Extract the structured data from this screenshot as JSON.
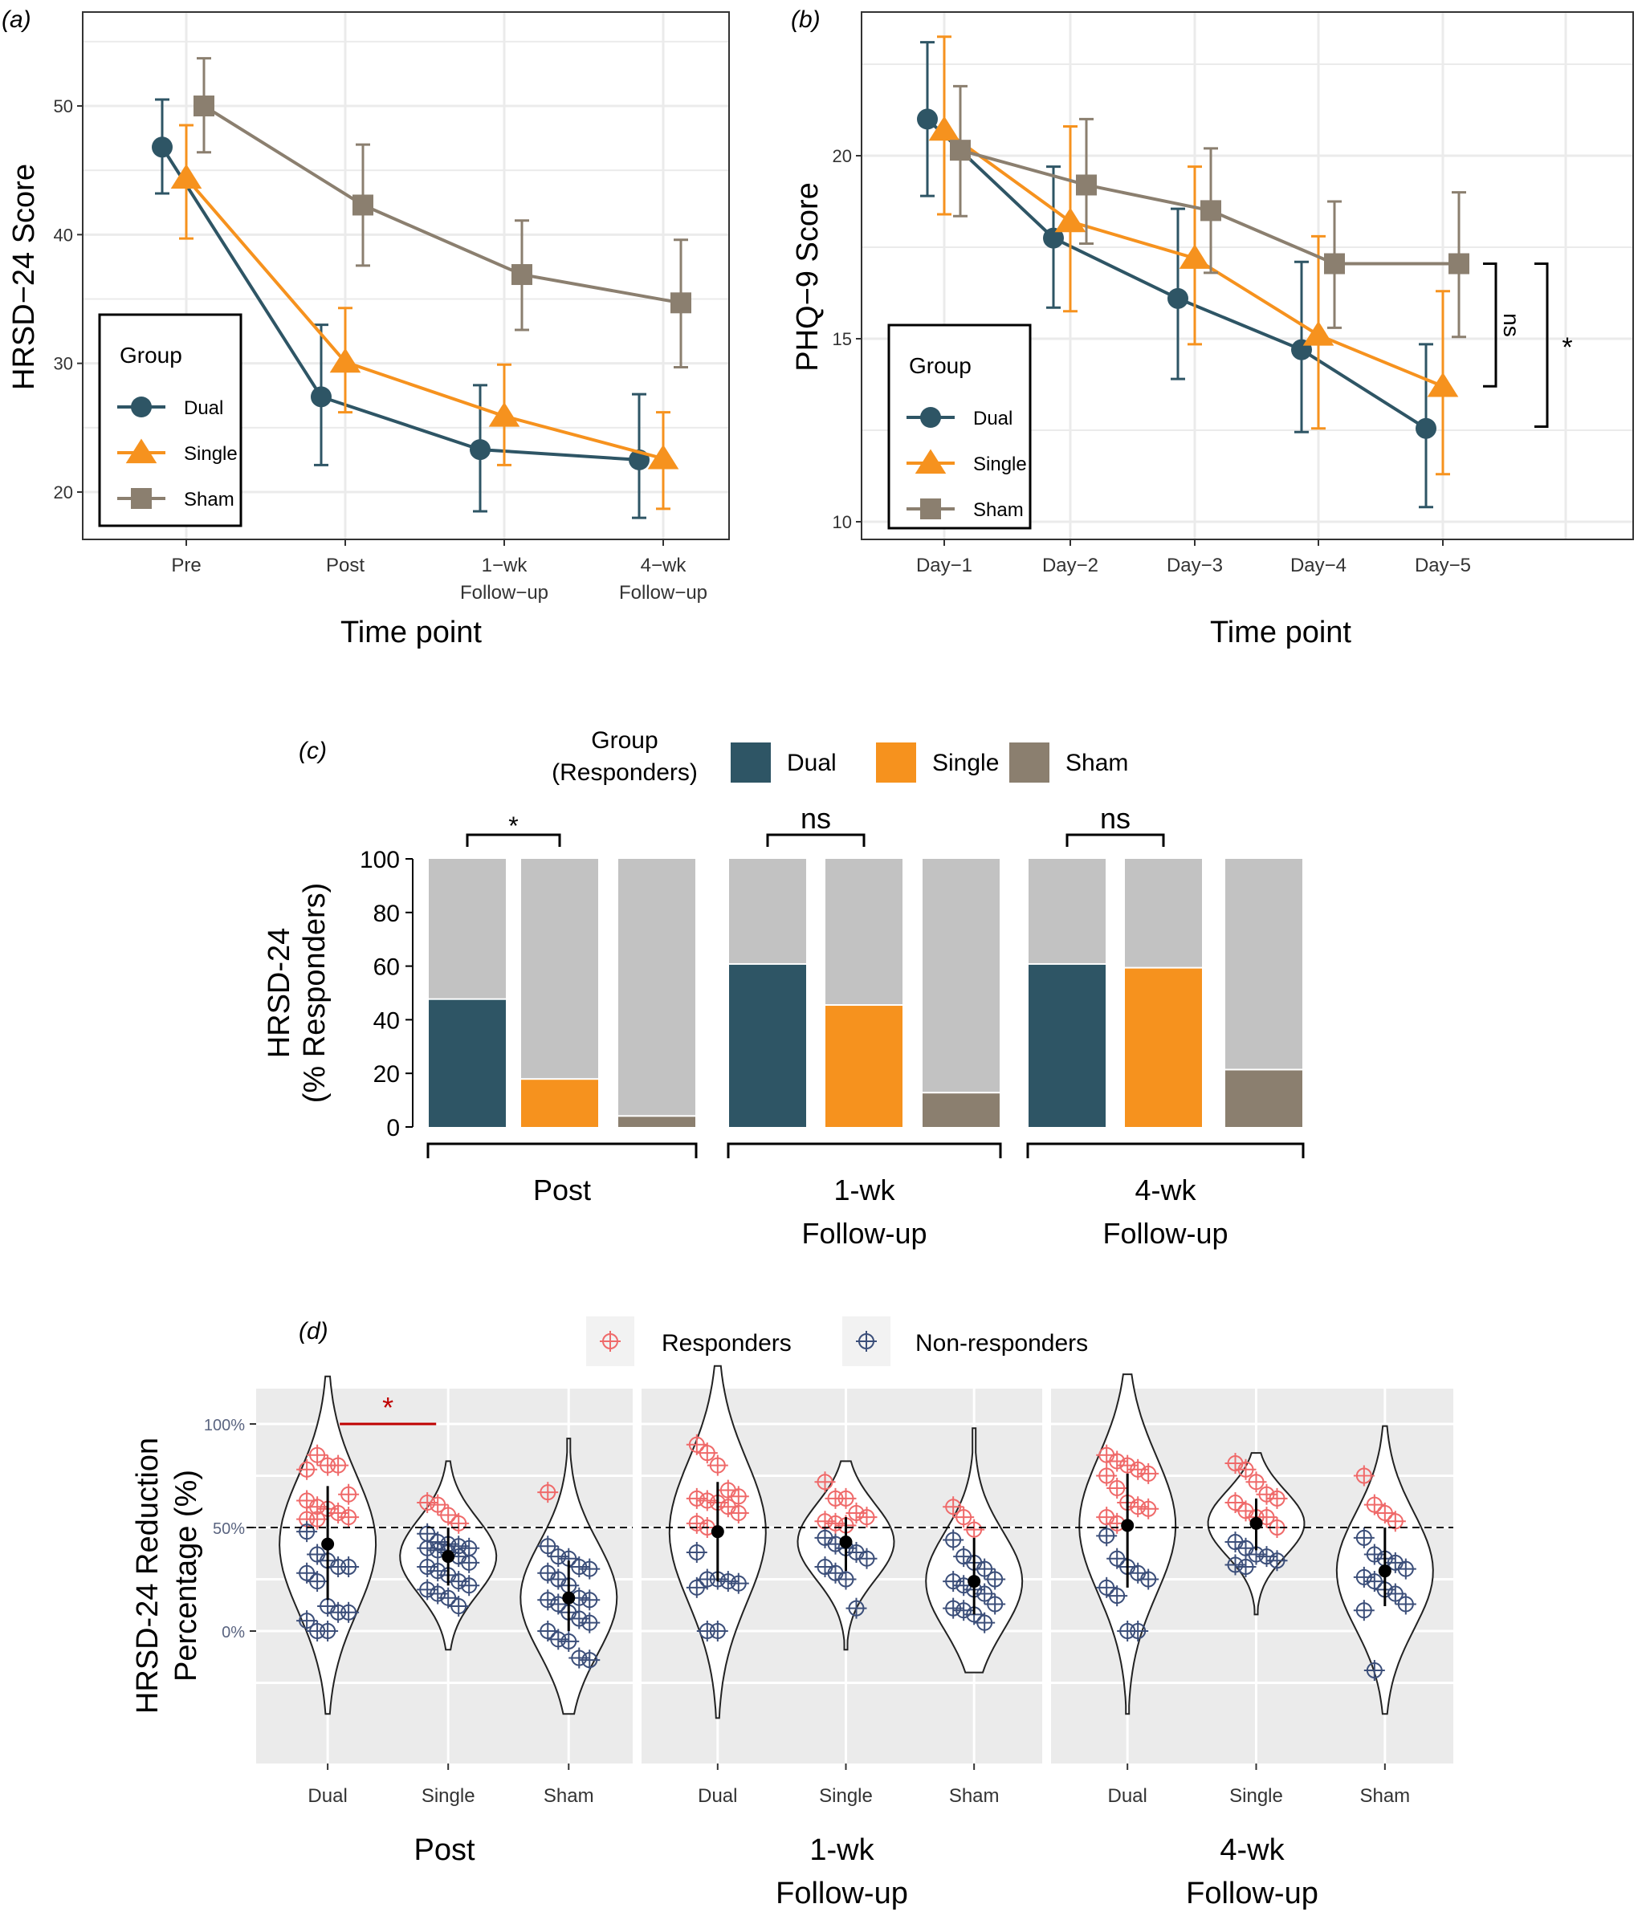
{
  "figure": {
    "panel_labels": [
      "(a)",
      "(b)",
      "(c)",
      "(d)"
    ]
  },
  "colors": {
    "dual": "#2e5565",
    "single": "#f6921e",
    "sham": "#8b7f6f",
    "non_responder_fill": "#c2c2c2",
    "responder_point": "#ef6a6a",
    "non_responder_point": "#3c4f7a",
    "significance_red": "#c00000",
    "d_tick_label": "#5a6480"
  },
  "chart_data": [
    {
      "id": "a",
      "type": "line",
      "title": "",
      "xlabel": "Time point",
      "ylabel": "HRSD−24 Score",
      "categories": [
        "Pre",
        "Post",
        "1−wk\nFollow−up",
        "4−wk\nFollow−up"
      ],
      "yticks": [
        20,
        30,
        40,
        50
      ],
      "ylim": [
        16.5,
        57
      ],
      "grid": true,
      "legend": {
        "title": "Group",
        "position": "bottom-left",
        "entries": [
          "Dual",
          "Single",
          "Sham"
        ]
      },
      "series": [
        {
          "name": "Dual",
          "marker": "circle",
          "values": [
            46.8,
            27.4,
            23.3,
            22.5
          ],
          "lower": [
            43.2,
            22.1,
            18.5,
            18.0
          ],
          "upper": [
            50.5,
            33.0,
            28.3,
            27.6
          ]
        },
        {
          "name": "Single",
          "marker": "triangle",
          "values": [
            44.4,
            30.1,
            25.9,
            22.6
          ],
          "lower": [
            39.7,
            26.2,
            22.1,
            18.7
          ],
          "upper": [
            48.5,
            34.3,
            29.9,
            26.2
          ]
        },
        {
          "name": "Sham",
          "marker": "square",
          "values": [
            50.0,
            42.3,
            36.9,
            34.7
          ],
          "lower": [
            46.4,
            37.6,
            32.6,
            29.7
          ],
          "upper": [
            53.7,
            47.0,
            41.1,
            39.6
          ]
        }
      ]
    },
    {
      "id": "b",
      "type": "line",
      "title": "",
      "xlabel": "Time point",
      "ylabel": "PHQ−9 Score",
      "categories": [
        "Day−1",
        "Day−2",
        "Day−3",
        "Day−4",
        "Day−5"
      ],
      "yticks": [
        10,
        15,
        20
      ],
      "ylim": [
        8.1,
        23.9
      ],
      "grid": true,
      "legend": {
        "title": "Group",
        "position": "bottom-left",
        "entries": [
          "Dual",
          "Single",
          "Sham"
        ]
      },
      "series": [
        {
          "name": "Dual",
          "marker": "circle",
          "values": [
            21.0,
            17.75,
            16.1,
            14.7,
            12.55
          ],
          "lower": [
            18.9,
            15.85,
            13.9,
            12.45,
            10.4
          ],
          "upper": [
            23.1,
            19.7,
            18.55,
            17.1,
            14.85
          ]
        },
        {
          "name": "Single",
          "marker": "triangle",
          "values": [
            20.7,
            18.2,
            17.2,
            15.1,
            13.7
          ],
          "lower": [
            18.4,
            15.75,
            14.85,
            12.55,
            11.3
          ],
          "upper": [
            23.25,
            20.8,
            19.7,
            17.8,
            16.3
          ]
        },
        {
          "name": "Sham",
          "marker": "square",
          "values": [
            20.15,
            19.2,
            18.5,
            17.05,
            17.05
          ],
          "lower": [
            18.35,
            17.6,
            16.8,
            15.3,
            15.05
          ],
          "upper": [
            21.9,
            21.0,
            20.2,
            18.75,
            19.0
          ]
        }
      ],
      "annotations": [
        {
          "label": "ns",
          "from": 17.05,
          "to": 13.7,
          "comparison": "Sham vs Single at Day−5"
        },
        {
          "label": "*",
          "from": 17.05,
          "to": 12.6,
          "comparison": "Sham vs Dual at Day−5"
        }
      ]
    },
    {
      "id": "c",
      "type": "bar",
      "title": "",
      "ylabel_lines": [
        "HRSD-24",
        "(% Responders)"
      ],
      "yticks": [
        0,
        20,
        40,
        60,
        80,
        100
      ],
      "ylim": [
        0,
        100
      ],
      "grid": false,
      "legend": {
        "title_lines": [
          "Group",
          "(Responders)"
        ],
        "position": "top",
        "entries": [
          "Dual",
          "Single",
          "Sham"
        ]
      },
      "groups": [
        {
          "label_lines": [
            "Post"
          ],
          "values": {
            "Dual": 47.4,
            "Single": 17.6,
            "Sham": 3.8
          },
          "significance": "*"
        },
        {
          "label_lines": [
            "1-wk",
            "Follow-up"
          ],
          "values": {
            "Dual": 60.5,
            "Single": 45.2,
            "Sham": 12.5
          },
          "significance": "ns"
        },
        {
          "label_lines": [
            "4-wk",
            "Follow-up"
          ],
          "values": {
            "Dual": 60.5,
            "Single": 59.1,
            "Sham": 21.1
          },
          "significance": "ns"
        }
      ],
      "stack_remainder": "Non-responders (to 100%)"
    },
    {
      "id": "d",
      "type": "scatter",
      "subtype": "violin",
      "ylabel_lines": [
        "HRSD-24 Reduction",
        "Percentage (%)"
      ],
      "yticks": [
        0,
        50,
        100
      ],
      "ytick_labels": [
        "0%",
        "50%",
        "100%"
      ],
      "ylim": [
        -50,
        130
      ],
      "reference_line": 50,
      "grid": true,
      "legend": {
        "position": "top",
        "entries": [
          "Responders",
          "Non-responders"
        ]
      },
      "facets": [
        {
          "label_lines": [
            "Post"
          ],
          "categories": [
            "Dual",
            "Single",
            "Sham"
          ],
          "significance": {
            "label": "*",
            "between": [
              "Dual",
              "Single"
            ]
          },
          "groups": [
            {
              "name": "Dual",
              "mean": 42,
              "low": 15,
              "high": 70,
              "vmin": -40,
              "vmax": 123,
              "responders": [
                78,
                85,
                80,
                80,
                66,
                63,
                60,
                59,
                57,
                55,
                54,
                54
              ],
              "non_responders": [
                48,
                37,
                34,
                31,
                31,
                28,
                24,
                12,
                9,
                9,
                5,
                0,
                0
              ]
            },
            {
              "name": "Single",
              "mean": 36,
              "low": 22,
              "high": 50,
              "vmin": -9,
              "vmax": 82,
              "responders": [
                62,
                61,
                56,
                52
              ],
              "non_responders": [
                47,
                43,
                42,
                41,
                40,
                40,
                39,
                38,
                36,
                33,
                31,
                29,
                27,
                24,
                22,
                20,
                18,
                16,
                12
              ]
            },
            {
              "name": "Sham",
              "mean": 16,
              "low": 0,
              "high": 34,
              "vmin": -40,
              "vmax": 93,
              "responders": [
                67
              ],
              "non_responders": [
                41,
                36,
                35,
                31,
                30,
                28,
                25,
                22,
                16,
                15,
                15,
                13,
                9,
                6,
                4,
                0,
                -4,
                -5,
                -13,
                -14
              ]
            }
          ]
        },
        {
          "label_lines": [
            "1-wk",
            "Follow-up"
          ],
          "categories": [
            "Dual",
            "Single",
            "Sham"
          ],
          "groups": [
            {
              "name": "Dual",
              "mean": 48,
              "low": 24,
              "high": 72,
              "vmin": -42,
              "vmax": 128,
              "responders": [
                90,
                86,
                80,
                68,
                65,
                64,
                63,
                62,
                60,
                57,
                52,
                50
              ],
              "non_responders": [
                38,
                25,
                25,
                24,
                23,
                21,
                0,
                0
              ]
            },
            {
              "name": "Single",
              "mean": 43,
              "low": 29,
              "high": 55,
              "vmin": -9,
              "vmax": 82,
              "responders": [
                72,
                64,
                64,
                57,
                55,
                53,
                52,
                51
              ],
              "non_responders": [
                45,
                42,
                40,
                38,
                35,
                31,
                28,
                25,
                11
              ]
            },
            {
              "name": "Sham",
              "mean": 24,
              "low": 8,
              "high": 45,
              "vmin": -20,
              "vmax": 98,
              "responders": [
                60,
                55,
                49
              ],
              "non_responders": [
                44,
                36,
                33,
                30,
                25,
                24,
                22,
                20,
                18,
                13,
                11,
                10,
                8,
                4
              ]
            }
          ]
        },
        {
          "label_lines": [
            "4-wk",
            "Follow-up"
          ],
          "categories": [
            "Dual",
            "Single",
            "Sham"
          ],
          "groups": [
            {
              "name": "Dual",
              "mean": 51,
              "low": 21,
              "high": 76,
              "vmin": -40,
              "vmax": 124,
              "responders": [
                85,
                82,
                80,
                78,
                76,
                75,
                69,
                62,
                60,
                59,
                55,
                52
              ],
              "non_responders": [
                46,
                35,
                31,
                28,
                25,
                21,
                17,
                0,
                0
              ]
            },
            {
              "name": "Single",
              "mean": 52,
              "low": 39,
              "high": 64,
              "vmin": 8,
              "vmax": 86,
              "responders": [
                81,
                78,
                72,
                66,
                64,
                62,
                58,
                55,
                55,
                50
              ],
              "non_responders": [
                43,
                40,
                37,
                36,
                34,
                32,
                31
              ]
            },
            {
              "name": "Sham",
              "mean": 29,
              "low": 12,
              "high": 50,
              "vmin": -40,
              "vmax": 99,
              "responders": [
                75,
                61,
                57,
                53
              ],
              "non_responders": [
                45,
                37,
                35,
                33,
                30,
                26,
                24,
                20,
                18,
                13,
                10,
                -19
              ]
            }
          ]
        }
      ]
    }
  ]
}
